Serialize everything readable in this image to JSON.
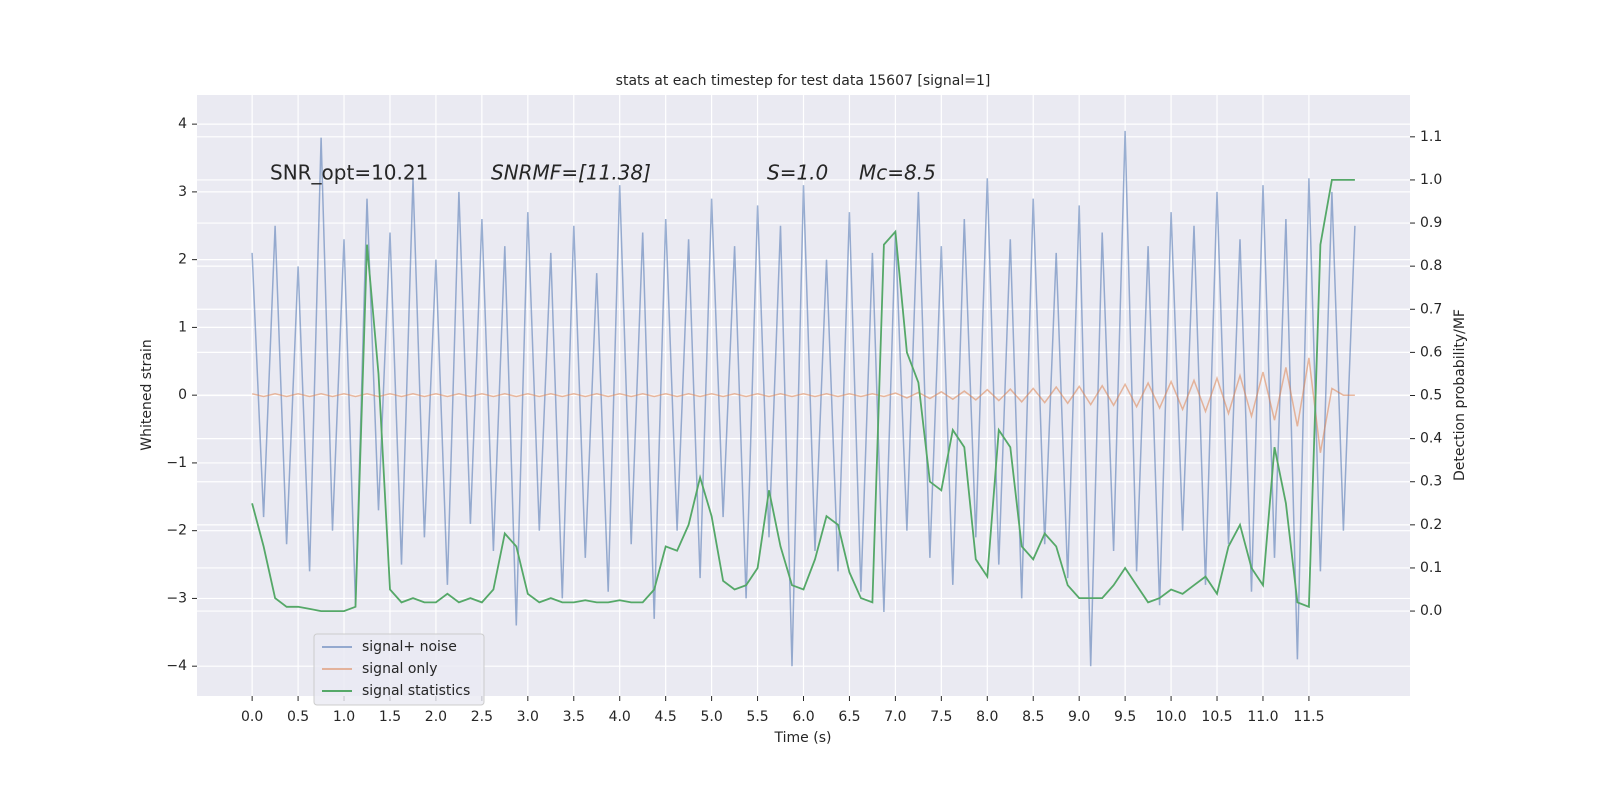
{
  "chart_data": {
    "type": "line",
    "title": "stats at each timestep for test data 15607 [signal=1]",
    "xlabel": "Time (s)",
    "ylabel": "Whitened strain",
    "y2label": "Detection probability/MF",
    "annotations": [
      "SNR_opt=10.21",
      "SNRMF=[11.38]",
      "S=1.0",
      "Mc=8.5"
    ],
    "x": [
      0,
      0.125,
      0.25,
      0.375,
      0.5,
      0.625,
      0.75,
      0.875,
      1,
      1.125,
      1.25,
      1.375,
      1.5,
      1.625,
      1.75,
      1.875,
      2,
      2.125,
      2.25,
      2.375,
      2.5,
      2.625,
      2.75,
      2.875,
      3,
      3.125,
      3.25,
      3.375,
      3.5,
      3.625,
      3.75,
      3.875,
      4,
      4.125,
      4.25,
      4.375,
      4.5,
      4.625,
      4.75,
      4.875,
      5,
      5.125,
      5.25,
      5.375,
      5.5,
      5.625,
      5.75,
      5.875,
      6,
      6.125,
      6.25,
      6.375,
      6.5,
      6.625,
      6.75,
      6.875,
      7,
      7.125,
      7.25,
      7.375,
      7.5,
      7.625,
      7.75,
      7.875,
      8,
      8.125,
      8.25,
      8.375,
      8.5,
      8.625,
      8.75,
      8.875,
      9,
      9.125,
      9.25,
      9.375,
      9.5,
      9.625,
      9.75,
      9.875,
      10,
      10.125,
      10.25,
      10.375,
      10.5,
      10.625,
      10.75,
      10.875,
      11,
      11.125,
      11.25,
      11.375,
      11.5,
      11.625,
      11.75,
      11.875,
      12
    ],
    "series": [
      {
        "name": "signal+ noise",
        "color": "#4c72b0",
        "values": [
          2.1,
          -1.8,
          2.5,
          -2.2,
          1.9,
          -2.6,
          3.8,
          -2.0,
          2.3,
          -3.1,
          2.9,
          -1.7,
          2.4,
          -2.5,
          3.2,
          -2.1,
          2.0,
          -2.8,
          3.0,
          -1.9,
          2.6,
          -2.3,
          2.2,
          -3.4,
          2.7,
          -2.0,
          2.1,
          -3.0,
          2.5,
          -2.4,
          1.8,
          -2.9,
          3.1,
          -2.2,
          2.4,
          -3.3,
          2.6,
          -2.0,
          2.3,
          -2.7,
          2.9,
          -1.8,
          2.2,
          -3.0,
          2.8,
          -2.1,
          2.5,
          -4.0,
          3.1,
          -2.3,
          2.0,
          -2.6,
          2.7,
          -2.9,
          2.1,
          -3.2,
          2.4,
          -2.0,
          3.0,
          -2.4,
          2.2,
          -2.8,
          2.6,
          -2.1,
          3.2,
          -2.5,
          2.3,
          -3.0,
          2.9,
          -2.2,
          2.1,
          -2.7,
          2.8,
          -4.0,
          2.4,
          -2.3,
          3.9,
          -2.6,
          2.2,
          -3.1,
          2.7,
          -2.0,
          2.5,
          -2.8,
          3.0,
          -2.2,
          2.3,
          -2.9,
          3.1,
          -2.4,
          2.6,
          -3.9,
          3.2,
          -2.6,
          3.0,
          -2.0,
          2.5
        ]
      },
      {
        "name": "signal only",
        "color": "#dd8452",
        "values": [
          0.02,
          -0.02,
          0.02,
          -0.02,
          0.02,
          -0.02,
          0.02,
          -0.02,
          0.02,
          -0.02,
          0.02,
          -0.02,
          0.02,
          -0.02,
          0.02,
          -0.02,
          0.02,
          -0.02,
          0.02,
          -0.02,
          0.02,
          -0.02,
          0.02,
          -0.02,
          0.02,
          -0.02,
          0.02,
          -0.02,
          0.02,
          -0.02,
          0.02,
          -0.02,
          0.02,
          -0.02,
          0.02,
          -0.02,
          0.02,
          -0.02,
          0.02,
          -0.02,
          0.02,
          -0.02,
          0.02,
          -0.02,
          0.02,
          -0.02,
          0.02,
          -0.02,
          0.02,
          -0.02,
          0.02,
          -0.02,
          0.02,
          -0.02,
          0.02,
          -0.02,
          0.03,
          -0.04,
          0.04,
          -0.05,
          0.05,
          -0.06,
          0.06,
          -0.07,
          0.08,
          -0.08,
          0.09,
          -0.1,
          0.1,
          -0.11,
          0.12,
          -0.12,
          0.13,
          -0.14,
          0.14,
          -0.15,
          0.16,
          -0.17,
          0.18,
          -0.19,
          0.2,
          -0.21,
          0.22,
          -0.24,
          0.25,
          -0.27,
          0.29,
          -0.31,
          0.34,
          -0.37,
          0.41,
          -0.46,
          0.55,
          -0.85,
          0.1,
          0.0,
          0.0
        ]
      },
      {
        "name": "signal statistics",
        "color": "#55a868",
        "axis": "y2",
        "values": [
          0.25,
          0.15,
          0.03,
          0.01,
          0.01,
          0.005,
          0.0,
          0.0,
          0.0,
          0.01,
          0.85,
          0.55,
          0.05,
          0.02,
          0.03,
          0.02,
          0.02,
          0.04,
          0.02,
          0.03,
          0.02,
          0.05,
          0.18,
          0.15,
          0.04,
          0.02,
          0.03,
          0.02,
          0.02,
          0.025,
          0.02,
          0.02,
          0.025,
          0.02,
          0.02,
          0.05,
          0.15,
          0.14,
          0.2,
          0.31,
          0.22,
          0.07,
          0.05,
          0.06,
          0.1,
          0.28,
          0.15,
          0.06,
          0.05,
          0.12,
          0.22,
          0.2,
          0.09,
          0.03,
          0.02,
          0.85,
          0.88,
          0.6,
          0.53,
          0.3,
          0.28,
          0.42,
          0.38,
          0.12,
          0.08,
          0.42,
          0.38,
          0.15,
          0.12,
          0.18,
          0.15,
          0.06,
          0.03,
          0.03,
          0.03,
          0.06,
          0.1,
          0.06,
          0.02,
          0.03,
          0.05,
          0.04,
          0.06,
          0.08,
          0.04,
          0.15,
          0.2,
          0.1,
          0.06,
          0.38,
          0.25,
          0.02,
          0.01,
          0.85,
          1.0,
          1.0,
          1.0
        ]
      }
    ],
    "xlim": [
      -0.6,
      12.6
    ],
    "ylim": [
      -4.44,
      4.43
    ],
    "y2lim": [
      -0.197,
      1.197
    ],
    "xticks": [
      {
        "value": 0,
        "label": "0.0"
      },
      0.5,
      {
        "value": 1,
        "label": "1.0"
      },
      1.5,
      {
        "value": 2,
        "label": "2.0"
      },
      2.5,
      {
        "value": 3,
        "label": "3.0"
      },
      3.5,
      {
        "value": 4,
        "label": "4.0"
      },
      4.5,
      {
        "value": 5,
        "label": "5.0"
      },
      5.5,
      {
        "value": 6,
        "label": "6.0"
      },
      6.5,
      {
        "value": 7,
        "label": "7.0"
      },
      7.5,
      {
        "value": 8,
        "label": "8.0"
      },
      8.5,
      {
        "value": 9,
        "label": "9.0"
      },
      9.5,
      {
        "value": 10,
        "label": "10.0"
      },
      10.5,
      {
        "value": 11,
        "label": "11.0"
      },
      11.5
    ],
    "yticks": [
      {
        "value": -4,
        "label": "−4"
      },
      {
        "value": -3,
        "label": "−3"
      },
      {
        "value": -2,
        "label": "−2"
      },
      {
        "value": -1,
        "label": "−1"
      },
      0,
      1,
      2,
      3,
      4
    ],
    "y2ticks": [
      {
        "value": 0,
        "label": "0.0"
      },
      0.1,
      0.2,
      0.3,
      0.4,
      0.5,
      0.6,
      0.7,
      0.8,
      0.9,
      {
        "value": 1,
        "label": "1.0"
      },
      1.1
    ],
    "grid": true,
    "legend": "lower left"
  }
}
